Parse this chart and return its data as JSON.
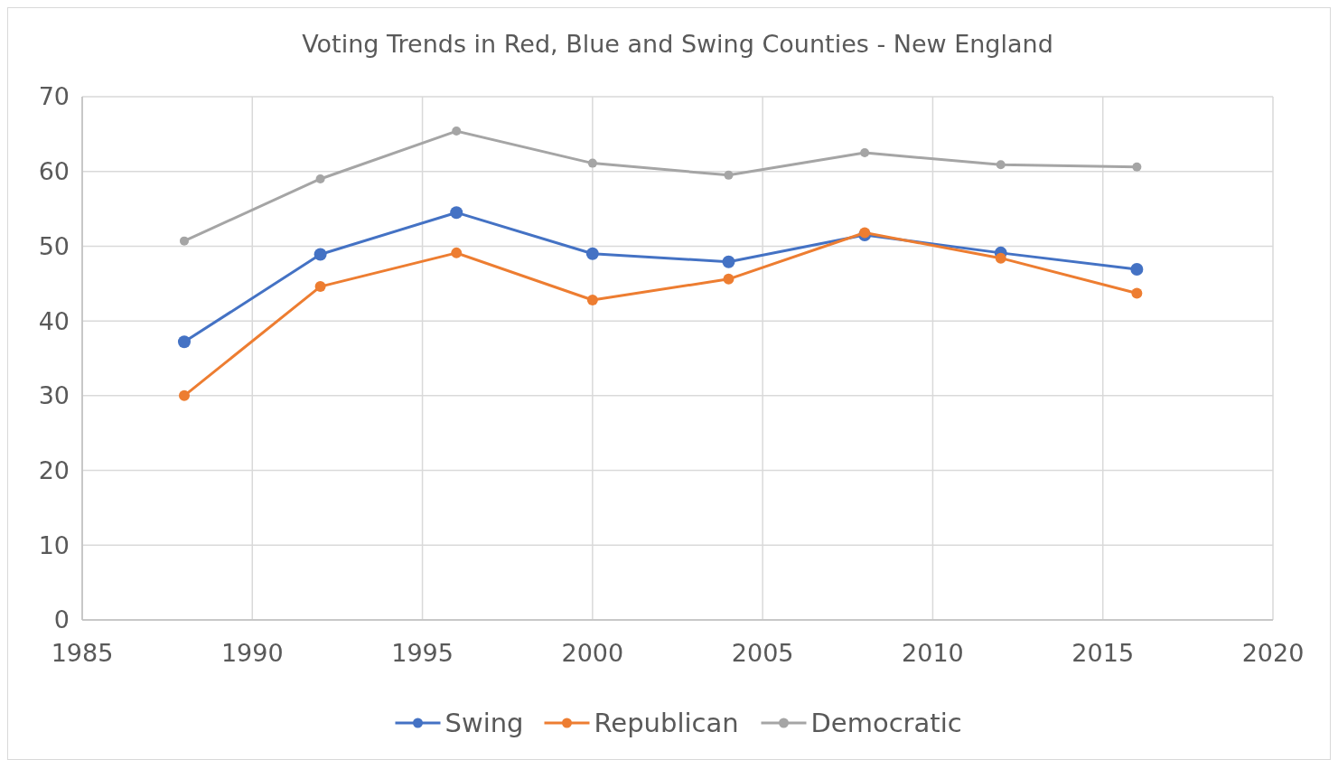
{
  "chart_data": {
    "type": "line",
    "title": "Voting Trends in Red, Blue and Swing Counties - New England",
    "x": [
      1988,
      1992,
      1996,
      2000,
      2004,
      2008,
      2012,
      2016
    ],
    "series": [
      {
        "name": "Swing",
        "color": "#4472c4",
        "values": [
          37.2,
          48.9,
          54.5,
          49.0,
          47.9,
          51.5,
          49.1,
          46.9
        ]
      },
      {
        "name": "Republican",
        "color": "#ed7d31",
        "values": [
          30.0,
          44.6,
          49.1,
          42.8,
          45.6,
          51.8,
          48.4,
          43.7
        ]
      },
      {
        "name": "Democratic",
        "color": "#a5a5a5",
        "values": [
          50.7,
          59.0,
          65.4,
          61.1,
          59.5,
          62.5,
          60.9,
          60.6
        ]
      }
    ],
    "xlim": [
      1985,
      2020
    ],
    "xticks": [
      1985,
      1990,
      1995,
      2000,
      2005,
      2010,
      2015,
      2020
    ],
    "ylim": [
      0,
      70
    ],
    "yticks": [
      0,
      10,
      20,
      30,
      40,
      50,
      60,
      70
    ],
    "grid": true,
    "legend": "bottom",
    "marker": "circle",
    "line_style": "solid"
  }
}
